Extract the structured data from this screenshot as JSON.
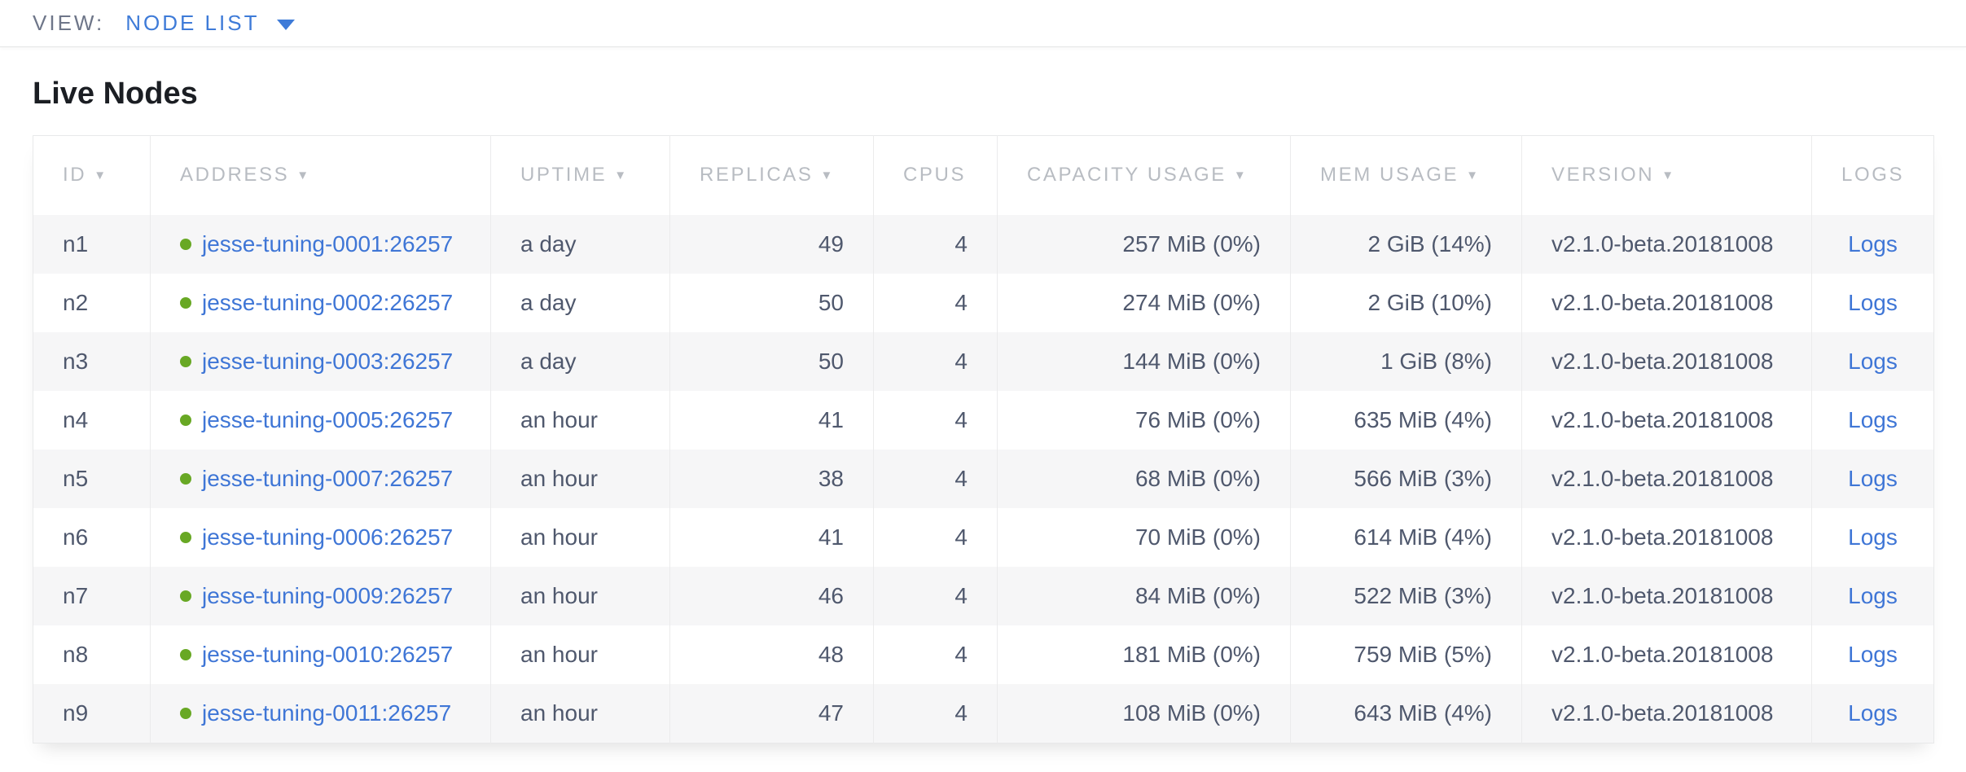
{
  "topbar": {
    "view_label": "VIEW:",
    "view_value": "NODE LIST"
  },
  "section": {
    "title": "Live Nodes"
  },
  "table": {
    "columns": [
      {
        "label": "ID",
        "sortable": true
      },
      {
        "label": "ADDRESS",
        "sortable": true
      },
      {
        "label": "UPTIME",
        "sortable": true
      },
      {
        "label": "REPLICAS",
        "sortable": true
      },
      {
        "label": "CPUS",
        "sortable": false
      },
      {
        "label": "CAPACITY USAGE",
        "sortable": true
      },
      {
        "label": "MEM USAGE",
        "sortable": true
      },
      {
        "label": "VERSION",
        "sortable": true
      },
      {
        "label": "LOGS",
        "sortable": false
      }
    ],
    "sort_caret_glyph": "▼",
    "rows": [
      {
        "id": "n1",
        "address": "jesse-tuning-0001:26257",
        "uptime": "a day",
        "replicas": "49",
        "cpus": "4",
        "capacity": "257 MiB (0%)",
        "mem": "2 GiB (14%)",
        "version": "v2.1.0-beta.20181008",
        "logs": "Logs"
      },
      {
        "id": "n2",
        "address": "jesse-tuning-0002:26257",
        "uptime": "a day",
        "replicas": "50",
        "cpus": "4",
        "capacity": "274 MiB (0%)",
        "mem": "2 GiB (10%)",
        "version": "v2.1.0-beta.20181008",
        "logs": "Logs"
      },
      {
        "id": "n3",
        "address": "jesse-tuning-0003:26257",
        "uptime": "a day",
        "replicas": "50",
        "cpus": "4",
        "capacity": "144 MiB (0%)",
        "mem": "1 GiB (8%)",
        "version": "v2.1.0-beta.20181008",
        "logs": "Logs"
      },
      {
        "id": "n4",
        "address": "jesse-tuning-0005:26257",
        "uptime": "an hour",
        "replicas": "41",
        "cpus": "4",
        "capacity": "76 MiB (0%)",
        "mem": "635 MiB (4%)",
        "version": "v2.1.0-beta.20181008",
        "logs": "Logs"
      },
      {
        "id": "n5",
        "address": "jesse-tuning-0007:26257",
        "uptime": "an hour",
        "replicas": "38",
        "cpus": "4",
        "capacity": "68 MiB (0%)",
        "mem": "566 MiB (3%)",
        "version": "v2.1.0-beta.20181008",
        "logs": "Logs"
      },
      {
        "id": "n6",
        "address": "jesse-tuning-0006:26257",
        "uptime": "an hour",
        "replicas": "41",
        "cpus": "4",
        "capacity": "70 MiB (0%)",
        "mem": "614 MiB (4%)",
        "version": "v2.1.0-beta.20181008",
        "logs": "Logs"
      },
      {
        "id": "n7",
        "address": "jesse-tuning-0009:26257",
        "uptime": "an hour",
        "replicas": "46",
        "cpus": "4",
        "capacity": "84 MiB (0%)",
        "mem": "522 MiB (3%)",
        "version": "v2.1.0-beta.20181008",
        "logs": "Logs"
      },
      {
        "id": "n8",
        "address": "jesse-tuning-0010:26257",
        "uptime": "an hour",
        "replicas": "48",
        "cpus": "4",
        "capacity": "181 MiB (0%)",
        "mem": "759 MiB (5%)",
        "version": "v2.1.0-beta.20181008",
        "logs": "Logs"
      },
      {
        "id": "n9",
        "address": "jesse-tuning-0011:26257",
        "uptime": "an hour",
        "replicas": "47",
        "cpus": "4",
        "capacity": "108 MiB (0%)",
        "mem": "643 MiB (4%)",
        "version": "v2.1.0-beta.20181008",
        "logs": "Logs"
      }
    ]
  },
  "colors": {
    "accent_blue": "#3e7bd8",
    "link_blue": "#3f76d6",
    "live_dot_green": "#68a824",
    "header_gray": "#b8bcc2",
    "body_text": "#4f586d",
    "row_stripe": "#f6f6f7"
  }
}
